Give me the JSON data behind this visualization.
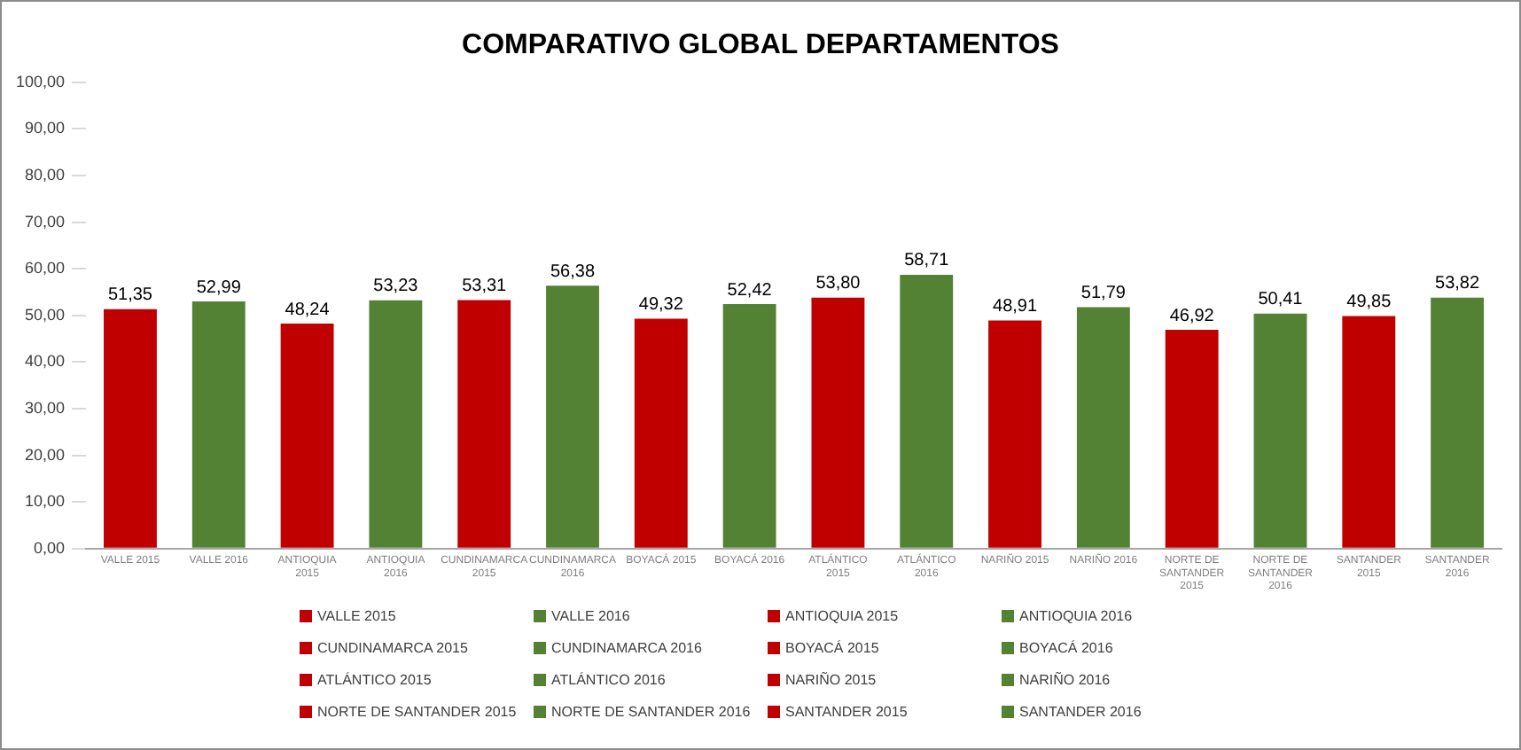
{
  "chart_data": {
    "type": "bar",
    "title": "COMPARATIVO GLOBAL DEPARTAMENTOS",
    "categories": [
      "VALLE 2015",
      "VALLE 2016",
      "ANTIOQUIA 2015",
      "ANTIOQUIA 2016",
      "CUNDINAMARCA 2015",
      "CUNDINAMARCA 2016",
      "BOYACÁ 2015",
      "BOYACÁ 2016",
      "ATLÁNTICO 2015",
      "ATLÁNTICO 2016",
      "NARIÑO 2015",
      "NARIÑO 2016",
      "NORTE DE SANTANDER 2015",
      "NORTE DE SANTANDER 2016",
      "SANTANDER 2015",
      "SANTANDER 2016"
    ],
    "series": [
      {
        "name": "VALLE 2015",
        "color": "#c00000",
        "values": [
          51.35,
          null,
          null,
          null,
          null,
          null,
          null,
          null,
          null,
          null,
          null,
          null,
          null,
          null,
          null,
          null
        ],
        "value_labels": [
          "51,35",
          null,
          null,
          null,
          null,
          null,
          null,
          null,
          null,
          null,
          null,
          null,
          null,
          null,
          null,
          null
        ]
      },
      {
        "name": "VALLE 2016",
        "color": "#548235",
        "values": [
          null,
          52.99,
          null,
          null,
          null,
          null,
          null,
          null,
          null,
          null,
          null,
          null,
          null,
          null,
          null,
          null
        ],
        "value_labels": [
          null,
          "52,99",
          null,
          null,
          null,
          null,
          null,
          null,
          null,
          null,
          null,
          null,
          null,
          null,
          null,
          null
        ]
      },
      {
        "name": "ANTIOQUIA 2015",
        "color": "#c00000",
        "values": [
          null,
          null,
          48.24,
          null,
          null,
          null,
          null,
          null,
          null,
          null,
          null,
          null,
          null,
          null,
          null,
          null
        ],
        "value_labels": [
          null,
          null,
          "48,24",
          null,
          null,
          null,
          null,
          null,
          null,
          null,
          null,
          null,
          null,
          null,
          null,
          null
        ]
      },
      {
        "name": "ANTIOQUIA 2016",
        "color": "#548235",
        "values": [
          null,
          null,
          null,
          53.23,
          null,
          null,
          null,
          null,
          null,
          null,
          null,
          null,
          null,
          null,
          null,
          null
        ],
        "value_labels": [
          null,
          null,
          null,
          "53,23",
          null,
          null,
          null,
          null,
          null,
          null,
          null,
          null,
          null,
          null,
          null,
          null
        ]
      },
      {
        "name": "CUNDINAMARCA 2015",
        "color": "#c00000",
        "values": [
          null,
          null,
          null,
          null,
          53.31,
          null,
          null,
          null,
          null,
          null,
          null,
          null,
          null,
          null,
          null,
          null
        ],
        "value_labels": [
          null,
          null,
          null,
          null,
          "53,31",
          null,
          null,
          null,
          null,
          null,
          null,
          null,
          null,
          null,
          null,
          null
        ]
      },
      {
        "name": "CUNDINAMARCA 2016",
        "color": "#548235",
        "values": [
          null,
          null,
          null,
          null,
          null,
          56.38,
          null,
          null,
          null,
          null,
          null,
          null,
          null,
          null,
          null,
          null
        ],
        "value_labels": [
          null,
          null,
          null,
          null,
          null,
          "56,38",
          null,
          null,
          null,
          null,
          null,
          null,
          null,
          null,
          null,
          null
        ]
      },
      {
        "name": "BOYACÁ 2015",
        "color": "#c00000",
        "values": [
          null,
          null,
          null,
          null,
          null,
          null,
          49.32,
          null,
          null,
          null,
          null,
          null,
          null,
          null,
          null,
          null
        ],
        "value_labels": [
          null,
          null,
          null,
          null,
          null,
          null,
          "49,32",
          null,
          null,
          null,
          null,
          null,
          null,
          null,
          null,
          null
        ]
      },
      {
        "name": "BOYACÁ 2016",
        "color": "#548235",
        "values": [
          null,
          null,
          null,
          null,
          null,
          null,
          null,
          52.42,
          null,
          null,
          null,
          null,
          null,
          null,
          null,
          null
        ],
        "value_labels": [
          null,
          null,
          null,
          null,
          null,
          null,
          null,
          "52,42",
          null,
          null,
          null,
          null,
          null,
          null,
          null,
          null
        ]
      },
      {
        "name": "ATLÁNTICO 2015",
        "color": "#c00000",
        "values": [
          null,
          null,
          null,
          null,
          null,
          null,
          null,
          null,
          53.8,
          null,
          null,
          null,
          null,
          null,
          null,
          null
        ],
        "value_labels": [
          null,
          null,
          null,
          null,
          null,
          null,
          null,
          null,
          "53,80",
          null,
          null,
          null,
          null,
          null,
          null,
          null
        ]
      },
      {
        "name": "ATLÁNTICO 2016",
        "color": "#548235",
        "values": [
          null,
          null,
          null,
          null,
          null,
          null,
          null,
          null,
          null,
          58.71,
          null,
          null,
          null,
          null,
          null,
          null
        ],
        "value_labels": [
          null,
          null,
          null,
          null,
          null,
          null,
          null,
          null,
          null,
          "58,71",
          null,
          null,
          null,
          null,
          null,
          null
        ]
      },
      {
        "name": "NARIÑO 2015",
        "color": "#c00000",
        "values": [
          null,
          null,
          null,
          null,
          null,
          null,
          null,
          null,
          null,
          null,
          48.91,
          null,
          null,
          null,
          null,
          null
        ],
        "value_labels": [
          null,
          null,
          null,
          null,
          null,
          null,
          null,
          null,
          null,
          null,
          "48,91",
          null,
          null,
          null,
          null,
          null
        ]
      },
      {
        "name": "NARIÑO 2016",
        "color": "#548235",
        "values": [
          null,
          null,
          null,
          null,
          null,
          null,
          null,
          null,
          null,
          null,
          null,
          51.79,
          null,
          null,
          null,
          null
        ],
        "value_labels": [
          null,
          null,
          null,
          null,
          null,
          null,
          null,
          null,
          null,
          null,
          null,
          "51,79",
          null,
          null,
          null,
          null
        ]
      },
      {
        "name": "NORTE DE SANTANDER 2015",
        "color": "#c00000",
        "values": [
          null,
          null,
          null,
          null,
          null,
          null,
          null,
          null,
          null,
          null,
          null,
          null,
          46.92,
          null,
          null,
          null
        ],
        "value_labels": [
          null,
          null,
          null,
          null,
          null,
          null,
          null,
          null,
          null,
          null,
          null,
          null,
          "46,92",
          null,
          null,
          null
        ]
      },
      {
        "name": "NORTE DE SANTANDER 2016",
        "color": "#548235",
        "values": [
          null,
          null,
          null,
          null,
          null,
          null,
          null,
          null,
          null,
          null,
          null,
          null,
          null,
          50.41,
          null,
          null
        ],
        "value_labels": [
          null,
          null,
          null,
          null,
          null,
          null,
          null,
          null,
          null,
          null,
          null,
          null,
          null,
          "50,41",
          null,
          null
        ]
      },
      {
        "name": "SANTANDER 2015",
        "color": "#c00000",
        "values": [
          null,
          null,
          null,
          null,
          null,
          null,
          null,
          null,
          null,
          null,
          null,
          null,
          null,
          null,
          49.85,
          null
        ],
        "value_labels": [
          null,
          null,
          null,
          null,
          null,
          null,
          null,
          null,
          null,
          null,
          null,
          null,
          null,
          null,
          "49,85",
          null
        ]
      },
      {
        "name": "SANTANDER 2016",
        "color": "#548235",
        "values": [
          null,
          null,
          null,
          null,
          null,
          null,
          null,
          null,
          null,
          null,
          null,
          null,
          null,
          null,
          null,
          53.82
        ],
        "value_labels": [
          null,
          null,
          null,
          null,
          null,
          null,
          null,
          null,
          null,
          null,
          null,
          null,
          null,
          null,
          null,
          "53,82"
        ]
      }
    ],
    "ylim": [
      0,
      100
    ],
    "yticks": [
      {
        "value": 0,
        "label": "0,00"
      },
      {
        "value": 10,
        "label": "10,00"
      },
      {
        "value": 20,
        "label": "20,00"
      },
      {
        "value": 30,
        "label": "30,00"
      },
      {
        "value": 40,
        "label": "40,00"
      },
      {
        "value": 50,
        "label": "50,00"
      },
      {
        "value": 60,
        "label": "60,00"
      },
      {
        "value": 70,
        "label": "70,00"
      },
      {
        "value": 80,
        "label": "80,00"
      },
      {
        "value": 90,
        "label": "90,00"
      },
      {
        "value": 100,
        "label": "100,00"
      }
    ],
    "grid": false,
    "legend": "bottom"
  }
}
